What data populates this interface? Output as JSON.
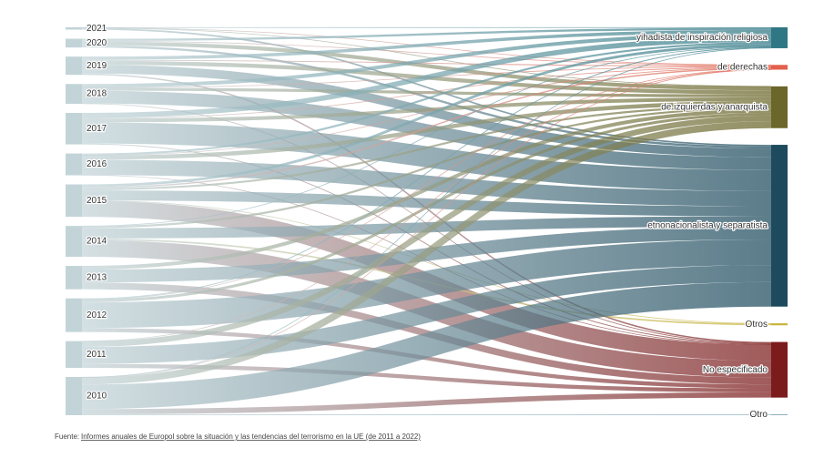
{
  "chart_data": {
    "type": "sankey",
    "nodes": [
      "2021",
      "2020",
      "2019",
      "2018",
      "2017",
      "2016",
      "2015",
      "2014",
      "2013",
      "2012",
      "2011",
      "2010",
      "yihadista de inspiración religiosa",
      "de derechas",
      "de izquierdas y anarquista",
      "etnonacionalista y separatista",
      "Otros",
      "No especificado",
      "Otro"
    ],
    "node_colors": [
      "#c3d4d8",
      "#c3d4d8",
      "#c3d4d8",
      "#c3d4d8",
      "#c3d4d8",
      "#c3d4d8",
      "#c3d4d8",
      "#c3d4d8",
      "#c3d4d8",
      "#c3d4d8",
      "#c3d4d8",
      "#c3d4d8",
      "#2f7784",
      "#e2614c",
      "#6b6629",
      "#1d4a5d",
      "#c9b43c",
      "#7c1b1b",
      "#8fb0bd"
    ],
    "links": [
      {
        "source": 0,
        "target": 12,
        "value": 3
      },
      {
        "source": 0,
        "target": 13,
        "value": 1
      },
      {
        "source": 0,
        "target": 14,
        "value": 1
      },
      {
        "source": 0,
        "target": 15,
        "value": 10
      },
      {
        "source": 1,
        "target": 12,
        "value": 14
      },
      {
        "source": 1,
        "target": 13,
        "value": 4
      },
      {
        "source": 1,
        "target": 14,
        "value": 25
      },
      {
        "source": 1,
        "target": 15,
        "value": 14
      },
      {
        "source": 2,
        "target": 12,
        "value": 21
      },
      {
        "source": 2,
        "target": 13,
        "value": 6
      },
      {
        "source": 2,
        "target": 14,
        "value": 26
      },
      {
        "source": 2,
        "target": 15,
        "value": 57
      },
      {
        "source": 2,
        "target": 17,
        "value": 9
      },
      {
        "source": 3,
        "target": 12,
        "value": 24
      },
      {
        "source": 3,
        "target": 13,
        "value": 1
      },
      {
        "source": 3,
        "target": 14,
        "value": 19
      },
      {
        "source": 3,
        "target": 15,
        "value": 83
      },
      {
        "source": 3,
        "target": 17,
        "value": 2
      },
      {
        "source": 4,
        "target": 12,
        "value": 33
      },
      {
        "source": 4,
        "target": 13,
        "value": 5
      },
      {
        "source": 4,
        "target": 14,
        "value": 24
      },
      {
        "source": 4,
        "target": 15,
        "value": 137
      },
      {
        "source": 4,
        "target": 17,
        "value": 6
      },
      {
        "source": 5,
        "target": 12,
        "value": 13
      },
      {
        "source": 5,
        "target": 13,
        "value": 1
      },
      {
        "source": 5,
        "target": 14,
        "value": 27
      },
      {
        "source": 5,
        "target": 15,
        "value": 99
      },
      {
        "source": 5,
        "target": 17,
        "value": 2
      },
      {
        "source": 6,
        "target": 12,
        "value": 17
      },
      {
        "source": 6,
        "target": 13,
        "value": 9
      },
      {
        "source": 6,
        "target": 14,
        "value": 13
      },
      {
        "source": 6,
        "target": 15,
        "value": 65
      },
      {
        "source": 6,
        "target": 16,
        "value": 3
      },
      {
        "source": 6,
        "target": 17,
        "value": 104
      },
      {
        "source": 7,
        "target": 12,
        "value": 2
      },
      {
        "source": 7,
        "target": 14,
        "value": 13
      },
      {
        "source": 7,
        "target": 15,
        "value": 67
      },
      {
        "source": 7,
        "target": 16,
        "value": 10
      },
      {
        "source": 7,
        "target": 17,
        "value": 109
      },
      {
        "source": 8,
        "target": 14,
        "value": 24
      },
      {
        "source": 8,
        "target": 15,
        "value": 84
      },
      {
        "source": 8,
        "target": 17,
        "value": 44
      },
      {
        "source": 9,
        "target": 12,
        "value": 6
      },
      {
        "source": 9,
        "target": 13,
        "value": 2
      },
      {
        "source": 9,
        "target": 14,
        "value": 18
      },
      {
        "source": 9,
        "target": 15,
        "value": 167
      },
      {
        "source": 9,
        "target": 17,
        "value": 26
      },
      {
        "source": 10,
        "target": 13,
        "value": 1
      },
      {
        "source": 10,
        "target": 14,
        "value": 37
      },
      {
        "source": 10,
        "target": 15,
        "value": 110
      },
      {
        "source": 10,
        "target": 17,
        "value": 26
      },
      {
        "source": 11,
        "target": 12,
        "value": 3
      },
      {
        "source": 11,
        "target": 13,
        "value": 1
      },
      {
        "source": 11,
        "target": 14,
        "value": 45
      },
      {
        "source": 11,
        "target": 15,
        "value": 160
      },
      {
        "source": 11,
        "target": 17,
        "value": 34
      },
      {
        "source": 11,
        "target": 18,
        "value": 6
      }
    ],
    "source_prefix": "Fuente:",
    "source_link": "Informes anuales de Europol sobre la situación y las tendencias del terrorismo en la UE (de 2011 a 2022)"
  }
}
